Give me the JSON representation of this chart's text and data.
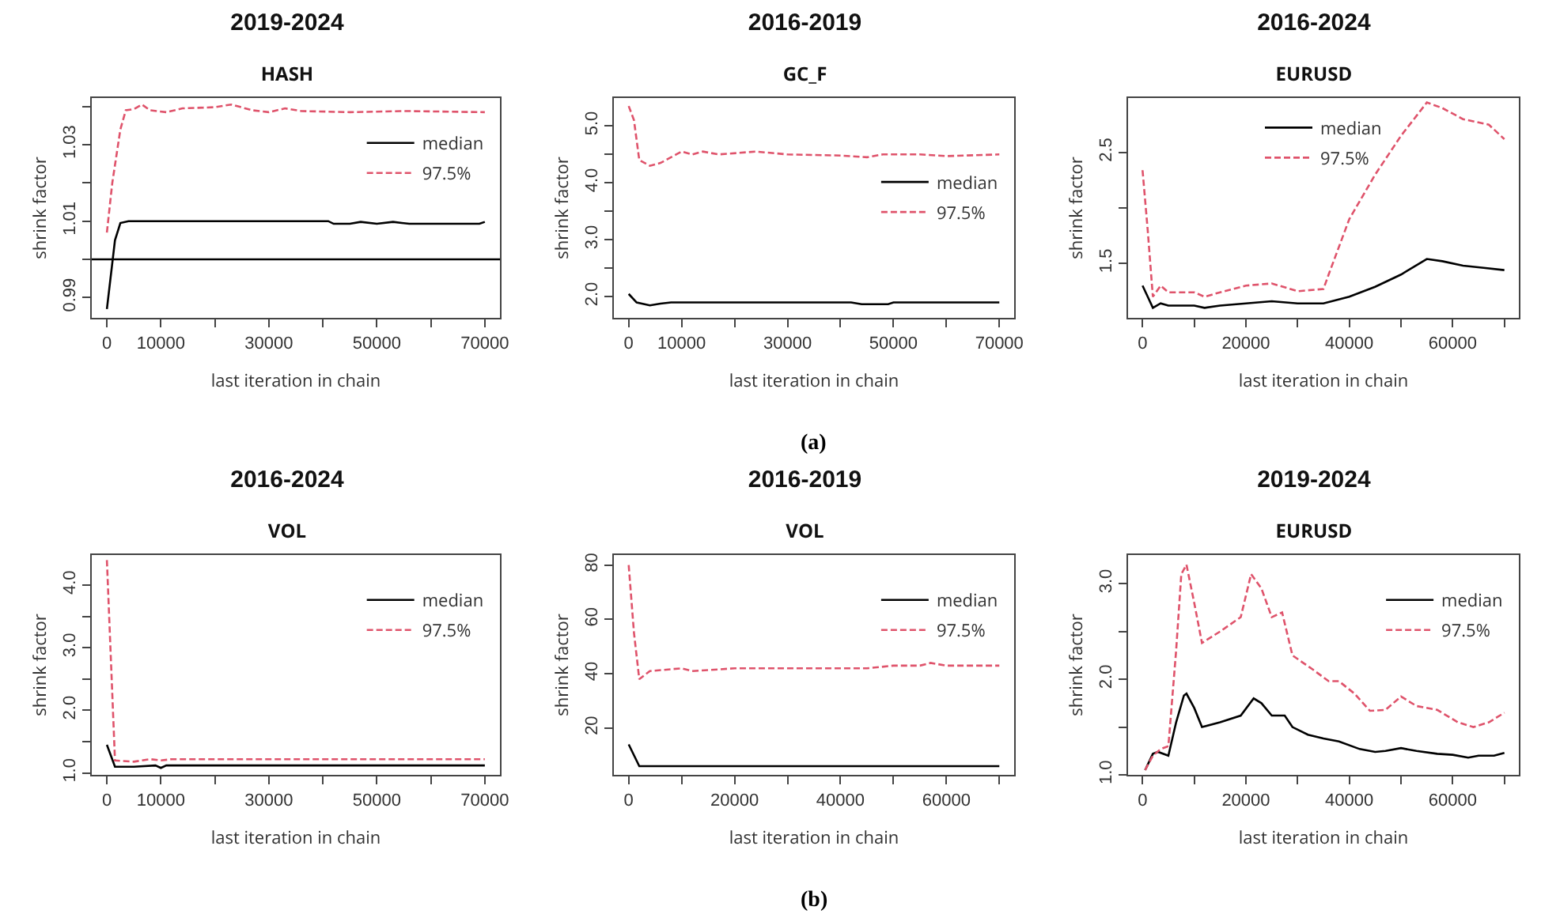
{
  "chart_data": [
    {
      "type": "line",
      "title": "2019-2024",
      "subtitle": "HASH",
      "xlabel": "last iteration in chain",
      "ylabel": "shrink factor",
      "legend": "top right",
      "xlim": [
        -2800,
        72800
      ],
      "ylim": [
        0.9847,
        1.0422
      ],
      "xticks": [
        0,
        {
          "value": 10000,
          "label": "10000"
        },
        {
          "value": 20000,
          "label": null
        },
        30000,
        {
          "value": 40000,
          "label": null
        },
        50000,
        {
          "value": 60000,
          "label": null
        },
        70000
      ],
      "yticks": [
        0.99,
        {
          "value": 1,
          "label": null
        },
        1.01,
        {
          "value": 1.02,
          "label": null
        },
        1.03,
        {
          "value": 1.04,
          "label": null
        }
      ],
      "ref_lines": [
        {
          "axis": "y",
          "value": 1,
          "color": "#000000",
          "line_style": "solid"
        }
      ],
      "series": [
        {
          "name": "median",
          "color": "#000000",
          "line_style": "solid",
          "x": [
            0,
            1500,
            2500,
            4000,
            41000,
            42000,
            45000,
            47000,
            50000,
            53000,
            56000,
            69000,
            70000
          ],
          "values": [
            0.987,
            1.005,
            1.0095,
            1.01,
            1.01,
            1.0093,
            1.0093,
            1.0098,
            1.0093,
            1.0098,
            1.0093,
            1.0093,
            1.0098
          ]
        },
        {
          "name": "97.5%",
          "color": "#df536b",
          "line_style": "dashed",
          "x": [
            0,
            1000,
            2500,
            3500,
            5000,
            6500,
            8000,
            11000,
            14000,
            20000,
            23000,
            27000,
            30000,
            33000,
            36000,
            45000,
            55000,
            70000
          ],
          "values": [
            1.007,
            1.02,
            1.034,
            1.039,
            1.0393,
            1.0405,
            1.039,
            1.0385,
            1.0395,
            1.0398,
            1.0405,
            1.039,
            1.0385,
            1.0395,
            1.0388,
            1.0385,
            1.0388,
            1.0385
          ]
        }
      ]
    },
    {
      "type": "line",
      "title": "2016-2019",
      "subtitle": "GC_F",
      "xlabel": "last iteration in chain",
      "ylabel": "shrink factor",
      "legend": "right",
      "xlim": [
        -2800,
        72800
      ],
      "ylim": [
        1.63,
        5.49
      ],
      "xticks": [
        0,
        {
          "value": 10000,
          "label": "10000"
        },
        {
          "value": 20000,
          "label": null
        },
        30000,
        {
          "value": 40000,
          "label": null
        },
        50000,
        {
          "value": 60000,
          "label": null
        },
        70000
      ],
      "yticks": [
        {
          "value": 2,
          "label": "2.0"
        },
        {
          "value": 2.5,
          "label": null
        },
        {
          "value": 3,
          "label": "3.0"
        },
        {
          "value": 3.5,
          "label": null
        },
        {
          "value": 4,
          "label": "4.0"
        },
        {
          "value": 4.5,
          "label": null
        },
        {
          "value": 5,
          "label": "5.0"
        }
      ],
      "annotations": [
        "(a)"
      ],
      "series": [
        {
          "name": "median",
          "color": "#000000",
          "line_style": "solid",
          "x": [
            0,
            1500,
            4000,
            6000,
            8000,
            42000,
            44000,
            49000,
            50000,
            70000
          ],
          "values": [
            2.05,
            1.9,
            1.85,
            1.88,
            1.9,
            1.9,
            1.87,
            1.87,
            1.9,
            1.9
          ]
        },
        {
          "name": "97.5%",
          "color": "#df536b",
          "line_style": "dashed",
          "x": [
            0,
            1000,
            2000,
            4000,
            6000,
            8000,
            10000,
            12000,
            14000,
            17000,
            24000,
            30000,
            40000,
            45000,
            48000,
            55000,
            60000,
            70000
          ],
          "values": [
            5.35,
            5.1,
            4.4,
            4.3,
            4.35,
            4.45,
            4.55,
            4.5,
            4.55,
            4.5,
            4.55,
            4.5,
            4.48,
            4.45,
            4.5,
            4.5,
            4.47,
            4.5
          ]
        }
      ]
    },
    {
      "type": "line",
      "title": "2016-2024",
      "subtitle": "EURUSD",
      "xlabel": "last iteration in chain",
      "ylabel": "shrink factor",
      "legend": "top",
      "xlim": [
        -2800,
        72800
      ],
      "ylim": [
        1.01,
        2.99
      ],
      "xticks": [
        0,
        {
          "value": 10000,
          "label": null
        },
        20000,
        {
          "value": 30000,
          "label": null
        },
        40000,
        {
          "value": 50000,
          "label": null
        },
        60000,
        {
          "value": 70000,
          "label": null
        }
      ],
      "yticks": [
        1.5,
        {
          "value": 2,
          "label": null
        },
        2.5
      ],
      "series": [
        {
          "name": "median",
          "color": "#000000",
          "line_style": "solid",
          "x": [
            0,
            1000,
            2000,
            3500,
            5000,
            10000,
            12000,
            15000,
            20000,
            25000,
            30000,
            35000,
            40000,
            45000,
            50000,
            55000,
            58000,
            62000,
            66000,
            70000
          ],
          "values": [
            1.3,
            1.2,
            1.1,
            1.14,
            1.12,
            1.12,
            1.1,
            1.12,
            1.14,
            1.16,
            1.14,
            1.14,
            1.2,
            1.29,
            1.4,
            1.54,
            1.52,
            1.48,
            1.46,
            1.44
          ]
        },
        {
          "name": "97.5%",
          "color": "#df536b",
          "line_style": "dashed",
          "x": [
            0,
            1000,
            2000,
            3500,
            5000,
            10000,
            12000,
            15000,
            20000,
            25000,
            30000,
            35000,
            36000,
            40000,
            45000,
            50000,
            55000,
            58000,
            62000,
            67000,
            70000
          ],
          "values": [
            2.34,
            1.8,
            1.2,
            1.3,
            1.24,
            1.24,
            1.2,
            1.24,
            1.3,
            1.32,
            1.25,
            1.27,
            1.4,
            1.9,
            2.3,
            2.65,
            2.95,
            2.9,
            2.8,
            2.75,
            2.62
          ]
        }
      ]
    },
    {
      "type": "line",
      "title": "2016-2024",
      "subtitle": "VOL",
      "xlabel": "last iteration in chain",
      "ylabel": "shrink factor",
      "legend": "top right",
      "xlim": [
        -2800,
        72800
      ],
      "ylim": [
        0.97,
        4.48
      ],
      "xticks": [
        0,
        {
          "value": 10000,
          "label": "10000"
        },
        {
          "value": 20000,
          "label": null
        },
        30000,
        {
          "value": 40000,
          "label": null
        },
        50000,
        {
          "value": 60000,
          "label": null
        },
        70000
      ],
      "yticks": [
        {
          "value": 1,
          "label": "1.0"
        },
        {
          "value": 1.5,
          "label": null
        },
        {
          "value": 2,
          "label": "2.0"
        },
        {
          "value": 2.5,
          "label": null
        },
        {
          "value": 3,
          "label": "3.0"
        },
        {
          "value": 3.5,
          "label": null
        },
        {
          "value": 4,
          "label": "4.0"
        }
      ],
      "series": [
        {
          "name": "median",
          "color": "#000000",
          "line_style": "solid",
          "x": [
            0,
            1500,
            5000,
            9000,
            10000,
            11000,
            70000
          ],
          "values": [
            1.45,
            1.1,
            1.1,
            1.12,
            1.08,
            1.12,
            1.12
          ]
        },
        {
          "name": "97.5%",
          "color": "#df536b",
          "line_style": "dashed",
          "x": [
            0,
            1500,
            5000,
            8000,
            10000,
            12000,
            70000
          ],
          "values": [
            4.4,
            1.2,
            1.18,
            1.22,
            1.2,
            1.22,
            1.22
          ]
        }
      ]
    },
    {
      "type": "line",
      "title": "2016-2019",
      "subtitle": "VOL",
      "xlabel": "last iteration in chain",
      "ylabel": "shrink factor",
      "legend": "top right",
      "xlim": [
        -2800,
        72800
      ],
      "ylim": [
        2.8,
        83.7
      ],
      "xticks": [
        0,
        {
          "value": 10000,
          "label": null
        },
        20000,
        {
          "value": 30000,
          "label": null
        },
        40000,
        {
          "value": 50000,
          "label": null
        },
        60000,
        {
          "value": 70000,
          "label": null
        }
      ],
      "yticks": [
        20,
        40,
        60,
        80
      ],
      "annotations": [
        "(b)"
      ],
      "series": [
        {
          "name": "median",
          "color": "#000000",
          "line_style": "solid",
          "x": [
            0,
            2000,
            70000
          ],
          "values": [
            14,
            6,
            6
          ]
        },
        {
          "name": "97.5%",
          "color": "#df536b",
          "line_style": "dashed",
          "x": [
            0,
            1000,
            2000,
            4000,
            10000,
            12000,
            20000,
            45000,
            50000,
            55000,
            57000,
            60000,
            70000
          ],
          "values": [
            80,
            55,
            38,
            41,
            42,
            41,
            42,
            42,
            43,
            43,
            44,
            43,
            43
          ]
        }
      ]
    },
    {
      "type": "line",
      "title": "2019-2024",
      "subtitle": "EURUSD",
      "xlabel": "last iteration in chain",
      "ylabel": "shrink factor",
      "legend": "top right",
      "xlim": [
        -2800,
        72800
      ],
      "ylim": [
        1.0,
        3.3
      ],
      "xticks": [
        0,
        {
          "value": 10000,
          "label": null
        },
        20000,
        {
          "value": 30000,
          "label": null
        },
        40000,
        {
          "value": 50000,
          "label": null
        },
        60000,
        {
          "value": 70000,
          "label": null
        }
      ],
      "yticks": [
        {
          "value": 1,
          "label": "1.0"
        },
        {
          "value": 1.5,
          "label": null
        },
        {
          "value": 2,
          "label": "2.0"
        },
        {
          "value": 2.5,
          "label": null
        },
        {
          "value": 3,
          "label": "3.0"
        }
      ],
      "series": [
        {
          "name": "median",
          "color": "#000000",
          "line_style": "solid",
          "x": [
            500,
            2000,
            3000,
            5000,
            6500,
            8000,
            8500,
            10000,
            11500,
            15000,
            19000,
            21500,
            23000,
            25000,
            27500,
            29000,
            32000,
            35000,
            38000,
            42000,
            45000,
            47000,
            50000,
            53000,
            57000,
            60000,
            63000,
            65000,
            68000,
            70000
          ],
          "values": [
            1.05,
            1.22,
            1.24,
            1.2,
            1.55,
            1.83,
            1.85,
            1.7,
            1.5,
            1.55,
            1.62,
            1.8,
            1.75,
            1.62,
            1.62,
            1.5,
            1.42,
            1.38,
            1.35,
            1.27,
            1.24,
            1.25,
            1.28,
            1.25,
            1.22,
            1.21,
            1.18,
            1.2,
            1.2,
            1.23
          ]
        },
        {
          "name": "97.5%",
          "color": "#df536b",
          "line_style": "dashed",
          "x": [
            500,
            2000,
            3500,
            5000,
            6500,
            7500,
            8500,
            10000,
            11500,
            15000,
            19000,
            21000,
            23000,
            25000,
            27000,
            29000,
            33000,
            36000,
            38000,
            41000,
            44000,
            47000,
            50000,
            53000,
            57000,
            61000,
            64000,
            67000,
            70000
          ],
          "values": [
            1.05,
            1.2,
            1.27,
            1.3,
            2.3,
            3.1,
            3.2,
            2.8,
            2.38,
            2.5,
            2.65,
            3.1,
            2.95,
            2.65,
            2.7,
            2.25,
            2.1,
            1.98,
            1.98,
            1.85,
            1.67,
            1.68,
            1.82,
            1.72,
            1.68,
            1.55,
            1.5,
            1.55,
            1.65
          ]
        }
      ]
    }
  ]
}
